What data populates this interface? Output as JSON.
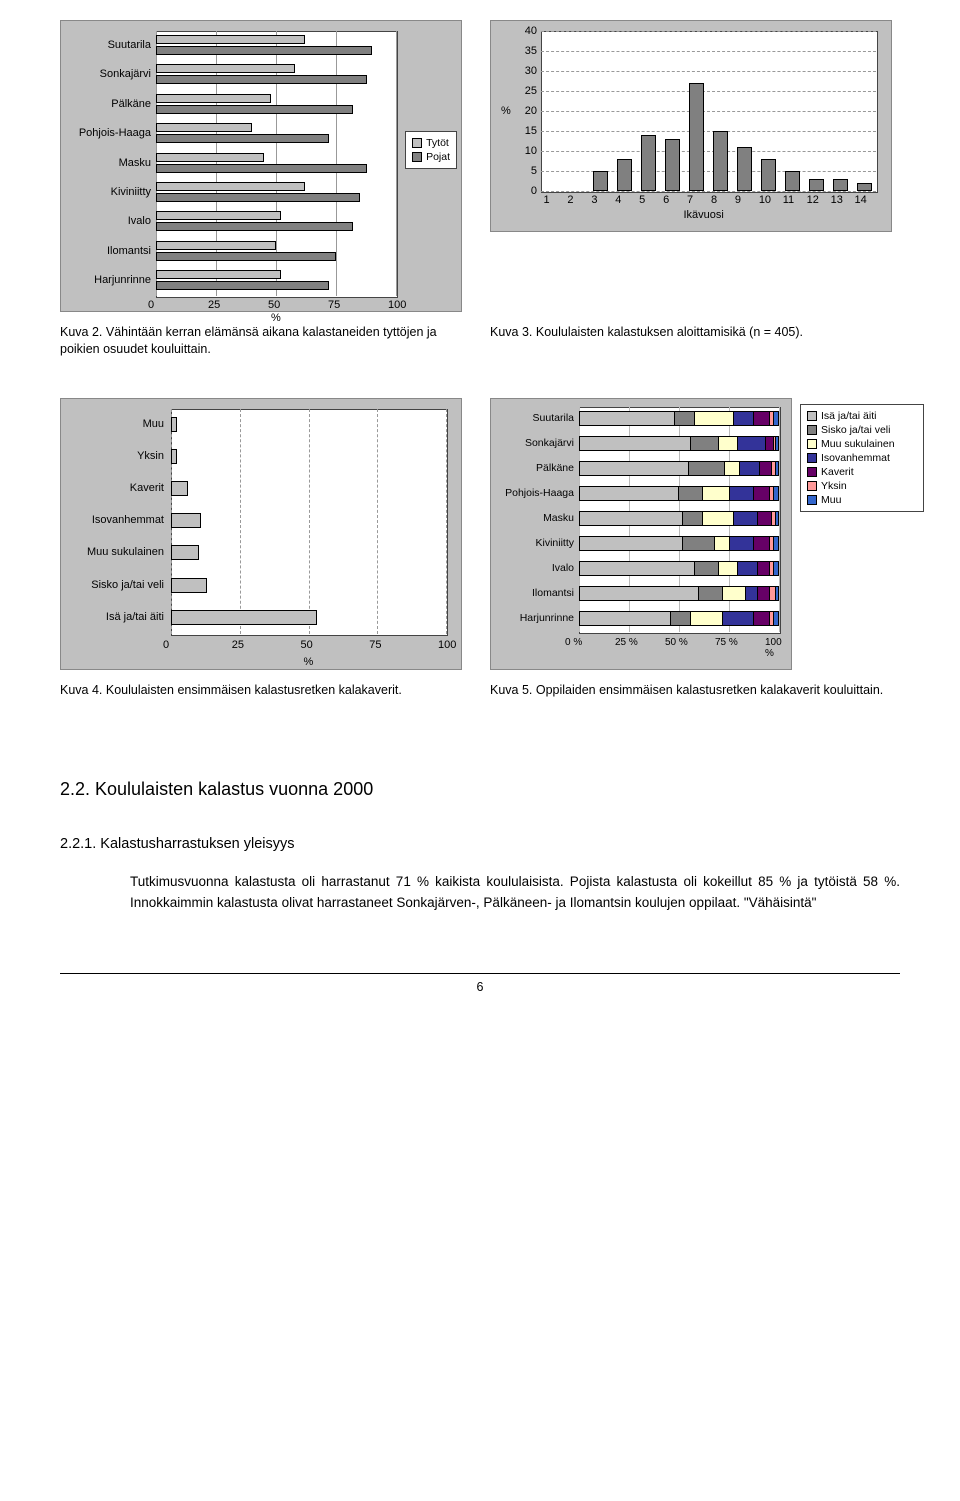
{
  "kuva2": {
    "type": "grouped-hbar",
    "categories": [
      "Suutarila",
      "Sonkajärvi",
      "Pälkäne",
      "Pohjois-Haaga",
      "Masku",
      "Kiviniitty",
      "Ivalo",
      "Ilomantsi",
      "Harjunrinne"
    ],
    "tytot": [
      62,
      58,
      48,
      40,
      45,
      62,
      52,
      50,
      52
    ],
    "pojat": [
      90,
      88,
      82,
      72,
      88,
      85,
      82,
      75,
      72
    ],
    "xticks": [
      0,
      25,
      50,
      75,
      100
    ],
    "xlabel": "%",
    "series": [
      {
        "name": "Tytöt",
        "color": "#c0c0c0"
      },
      {
        "name": "Pojat",
        "color": "#808080"
      }
    ],
    "caption": "Kuva 2. Vähintään kerran elämänsä aikana kalastaneiden tyttöjen ja poikien osuudet kouluittain.",
    "bg": "#c0c0c0",
    "plot_bg": "#ffffff",
    "font_size": 11
  },
  "kuva3": {
    "type": "bar",
    "x": [
      1,
      2,
      3,
      4,
      5,
      6,
      7,
      8,
      9,
      10,
      11,
      12,
      13,
      14
    ],
    "y": [
      0,
      0,
      5,
      8,
      14,
      13,
      27,
      15,
      11,
      8,
      5,
      3,
      3,
      2
    ],
    "ylim": [
      0,
      40
    ],
    "ytick_step": 5,
    "ylabel": "%",
    "xlabel": "Ikävuosi",
    "bar_color": "#808080",
    "bg": "#c0c0c0",
    "plot_bg": "#ffffff",
    "grid_color": "#999999",
    "caption": "Kuva 3. Koululaisten kalastuksen aloittamisikä (n = 405).",
    "font_size": 11
  },
  "kuva4": {
    "type": "hbar",
    "categories": [
      "Muu",
      "Yksin",
      "Kaverit",
      "Isovanhemmat",
      "Muu sukulainen",
      "Sisko ja/tai veli",
      "Isä ja/tai äiti"
    ],
    "values": [
      2,
      2,
      6,
      11,
      10,
      13,
      53
    ],
    "xticks": [
      0,
      25,
      50,
      75,
      100
    ],
    "xlabel": "%",
    "bar_color": "#c0c0c0",
    "bg": "#c0c0c0",
    "plot_bg": "#ffffff",
    "caption": "Kuva 4. Koululaisten ensimmäisen kalastusretken kalakaverit.",
    "font_size": 11
  },
  "kuva5": {
    "type": "stacked-hbar",
    "categories": [
      "Suutarila",
      "Sonkajärvi",
      "Pälkäne",
      "Pohjois-Haaga",
      "Masku",
      "Kiviniitty",
      "Ivalo",
      "Ilomantsi",
      "Harjunrinne"
    ],
    "series": [
      {
        "name": "Isä ja/tai äiti",
        "color": "#c0c0c0"
      },
      {
        "name": "Sisko ja/tai veli",
        "color": "#808080"
      },
      {
        "name": "Muu sukulainen",
        "color": "#ffffcc"
      },
      {
        "name": "Isovanhemmat",
        "color": "#333399"
      },
      {
        "name": "Kaverit",
        "color": "#660066"
      },
      {
        "name": "Yksin",
        "color": "#ff9999"
      },
      {
        "name": "Muu",
        "color": "#3366cc"
      }
    ],
    "rows": [
      [
        48,
        10,
        20,
        10,
        8,
        2,
        2
      ],
      [
        56,
        14,
        10,
        14,
        4,
        1,
        1
      ],
      [
        55,
        18,
        8,
        10,
        6,
        2,
        1
      ],
      [
        50,
        12,
        14,
        12,
        8,
        2,
        2
      ],
      [
        52,
        10,
        16,
        12,
        7,
        2,
        1
      ],
      [
        52,
        16,
        8,
        12,
        8,
        2,
        2
      ],
      [
        58,
        12,
        10,
        10,
        6,
        2,
        2
      ],
      [
        60,
        12,
        12,
        6,
        6,
        3,
        1
      ],
      [
        46,
        10,
        16,
        16,
        8,
        2,
        2
      ]
    ],
    "xticks": [
      "0 %",
      "25 %",
      "50 %",
      "75 %",
      "100 %"
    ],
    "bg": "#c0c0c0",
    "plot_bg": "#ffffff",
    "caption": "Kuva 5. Oppilaiden ensimmäisen kalastusretken kalakaverit kouluittain.",
    "font_size": 11
  },
  "section_22": "2.2. Koululaisten kalastus vuonna 2000",
  "sub_221_title": "2.2.1. Kalastusharrastuksen yleisyys",
  "sub_221_body": "Tutkimusvuonna kalastusta oli harrastanut 71 % kaikista koululaisista. Pojista kalastusta oli kokeillut 85 % ja tytöistä 58 %. Innokkaimmin kalastusta olivat harrastaneet Sonkajärven-, Pälkäneen- ja Ilomantsin koulujen oppilaat. \"Vähäisintä\"",
  "page_number": "6"
}
